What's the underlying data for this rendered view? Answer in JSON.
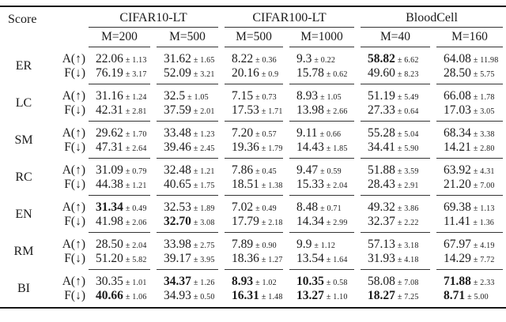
{
  "header": {
    "score": "Score",
    "groups": [
      {
        "label": "CIFAR10-LT",
        "cols": [
          "M=200",
          "M=500"
        ]
      },
      {
        "label": "CIFAR100-LT",
        "cols": [
          "M=500",
          "M=1000"
        ]
      },
      {
        "label": "BloodCell",
        "cols": [
          "M=40",
          "M=160"
        ]
      }
    ]
  },
  "metrics": {
    "accuracy": "A(↑)",
    "forgetting": "F(↓)"
  },
  "colors": {
    "text": "#1b1b1b",
    "rule_thin": "#333333",
    "rule_thick": "#161616"
  },
  "rows": [
    {
      "score": "ER",
      "A": [
        {
          "v": "22.06",
          "e": "± 1.13",
          "b": false
        },
        {
          "v": "31.62",
          "e": "± 1.65",
          "b": false
        },
        {
          "v": "8.22",
          "e": "± 0.36",
          "b": false
        },
        {
          "v": "9.3",
          "e": "± 0.22",
          "b": false
        },
        {
          "v": "58.82",
          "e": "± 6.62",
          "b": true
        },
        {
          "v": "64.08",
          "e": "± 11.98",
          "b": false
        }
      ],
      "F": [
        {
          "v": "76.19",
          "e": "± 3.17",
          "b": false
        },
        {
          "v": "52.09",
          "e": "± 3.21",
          "b": false
        },
        {
          "v": "20.16",
          "e": "± 0.9",
          "b": false
        },
        {
          "v": "15.78",
          "e": "± 0.62",
          "b": false
        },
        {
          "v": "49.60",
          "e": "± 8.23",
          "b": false
        },
        {
          "v": "28.50",
          "e": "± 5.75",
          "b": false
        }
      ]
    },
    {
      "score": "LC",
      "A": [
        {
          "v": "31.16",
          "e": "± 1.24",
          "b": false
        },
        {
          "v": "32.5",
          "e": "± 1.05",
          "b": false
        },
        {
          "v": "7.15",
          "e": "± 0.73",
          "b": false
        },
        {
          "v": "8.93",
          "e": "± 1.05",
          "b": false
        },
        {
          "v": "51.19",
          "e": "± 5.49",
          "b": false
        },
        {
          "v": "66.08",
          "e": "± 1.78",
          "b": false
        }
      ],
      "F": [
        {
          "v": "42.31",
          "e": "± 2.81",
          "b": false
        },
        {
          "v": "37.59",
          "e": "± 2.01",
          "b": false
        },
        {
          "v": "17.53",
          "e": "± 1.71",
          "b": false
        },
        {
          "v": "13.98",
          "e": "± 2.66",
          "b": false
        },
        {
          "v": "27.33",
          "e": "± 0.64",
          "b": false
        },
        {
          "v": "17.03",
          "e": "± 3.05",
          "b": false
        }
      ]
    },
    {
      "score": "SM",
      "A": [
        {
          "v": "29.62",
          "e": "± 1.70",
          "b": false
        },
        {
          "v": "33.48",
          "e": "± 1.23",
          "b": false
        },
        {
          "v": "7.20",
          "e": "± 0.57",
          "b": false
        },
        {
          "v": "9.11",
          "e": "± 0.66",
          "b": false
        },
        {
          "v": "55.28",
          "e": "± 5.04",
          "b": false
        },
        {
          "v": "68.34",
          "e": "± 3.38",
          "b": false
        }
      ],
      "F": [
        {
          "v": "47.31",
          "e": "± 2.64",
          "b": false
        },
        {
          "v": "39.46",
          "e": "± 2.45",
          "b": false
        },
        {
          "v": "19.36",
          "e": "± 1.79",
          "b": false
        },
        {
          "v": "14.43",
          "e": "± 1.85",
          "b": false
        },
        {
          "v": "34.41",
          "e": "± 5.90",
          "b": false
        },
        {
          "v": "14.21",
          "e": "± 2.80",
          "b": false
        }
      ]
    },
    {
      "score": "RC",
      "A": [
        {
          "v": "31.09",
          "e": "± 0.79",
          "b": false
        },
        {
          "v": "32.48",
          "e": "± 1.21",
          "b": false
        },
        {
          "v": "7.86",
          "e": "± 0.45",
          "b": false
        },
        {
          "v": "9.47",
          "e": "± 0.59",
          "b": false
        },
        {
          "v": "51.88",
          "e": "± 3.59",
          "b": false
        },
        {
          "v": "63.92",
          "e": "± 4.31",
          "b": false
        }
      ],
      "F": [
        {
          "v": "44.38",
          "e": "± 1.21",
          "b": false
        },
        {
          "v": "40.65",
          "e": "± 1.75",
          "b": false
        },
        {
          "v": "18.51",
          "e": "± 1.38",
          "b": false
        },
        {
          "v": "15.33",
          "e": "± 2.04",
          "b": false
        },
        {
          "v": "28.43",
          "e": "± 2.91",
          "b": false
        },
        {
          "v": "21.20",
          "e": "± 7.00",
          "b": false
        }
      ]
    },
    {
      "score": "EN",
      "A": [
        {
          "v": "31.34",
          "e": "± 0.49",
          "b": true
        },
        {
          "v": "32.53",
          "e": "± 1.89",
          "b": false
        },
        {
          "v": "7.02",
          "e": "± 0.49",
          "b": false
        },
        {
          "v": "8.48",
          "e": "± 0.71",
          "b": false
        },
        {
          "v": "49.32",
          "e": "± 3.86",
          "b": false
        },
        {
          "v": "69.38",
          "e": "± 1.13",
          "b": false
        }
      ],
      "F": [
        {
          "v": "41.98",
          "e": "± 2.06",
          "b": false
        },
        {
          "v": "32.70",
          "e": "± 3.08",
          "b": true
        },
        {
          "v": "17.79",
          "e": "± 2.18",
          "b": false
        },
        {
          "v": "14.34",
          "e": "± 2.99",
          "b": false
        },
        {
          "v": "32.37",
          "e": "± 2.22",
          "b": false
        },
        {
          "v": "11.41",
          "e": "± 1.36",
          "b": false
        }
      ]
    },
    {
      "score": "RM",
      "A": [
        {
          "v": "28.50",
          "e": "± 2.04",
          "b": false
        },
        {
          "v": "33.98",
          "e": "± 2.75",
          "b": false
        },
        {
          "v": "7.89",
          "e": "± 0.90",
          "b": false
        },
        {
          "v": "9.9",
          "e": "± 1.12",
          "b": false
        },
        {
          "v": "57.13",
          "e": "± 3.18",
          "b": false
        },
        {
          "v": "67.97",
          "e": "± 4.19",
          "b": false
        }
      ],
      "F": [
        {
          "v": "51.20",
          "e": "± 5.82",
          "b": false
        },
        {
          "v": "39.17",
          "e": "± 3.95",
          "b": false
        },
        {
          "v": "18.36",
          "e": "± 1.27",
          "b": false
        },
        {
          "v": "13.54",
          "e": "± 1.64",
          "b": false
        },
        {
          "v": "31.93",
          "e": "± 4.18",
          "b": false
        },
        {
          "v": "14.29",
          "e": "± 7.72",
          "b": false
        }
      ]
    },
    {
      "score": "BI",
      "A": [
        {
          "v": "30.35",
          "e": "± 1.01",
          "b": false
        },
        {
          "v": "34.37",
          "e": "± 1.26",
          "b": true
        },
        {
          "v": "8.93",
          "e": "± 1.02",
          "b": true
        },
        {
          "v": "10.35",
          "e": "± 0.58",
          "b": true
        },
        {
          "v": "58.08",
          "e": "± 7.08",
          "b": false
        },
        {
          "v": "71.88",
          "e": "± 2.33",
          "b": true
        }
      ],
      "F": [
        {
          "v": "40.66",
          "e": "± 1.06",
          "b": true
        },
        {
          "v": "34.93",
          "e": "± 0.50",
          "b": false
        },
        {
          "v": "16.31",
          "e": "± 1.48",
          "b": true
        },
        {
          "v": "13.27",
          "e": "± 1.10",
          "b": true
        },
        {
          "v": "18.27",
          "e": "± 7.25",
          "b": true
        },
        {
          "v": "8.71",
          "e": "± 5.00",
          "b": true
        }
      ]
    }
  ]
}
